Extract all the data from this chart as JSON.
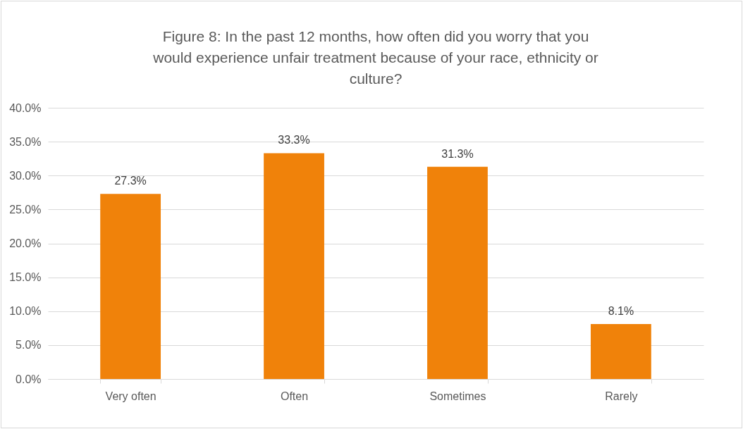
{
  "chart_data": {
    "type": "bar",
    "title": "Figure 8: In the past 12 months, how often did you worry that you would experience unfair treatment because of your race, ethnicity or culture?",
    "categories": [
      "Very often",
      "Often",
      "Sometimes",
      "Rarely"
    ],
    "values": [
      27.3,
      33.3,
      31.3,
      8.1
    ],
    "value_labels": [
      "27.3%",
      "33.3%",
      "31.3%",
      "8.1%"
    ],
    "color": "#f0820a",
    "ylim": [
      0,
      40
    ],
    "yticks": [
      {
        "value": 0,
        "label": "0.0%"
      },
      {
        "value": 5,
        "label": "5.0%"
      },
      {
        "value": 10,
        "label": "10.0%"
      },
      {
        "value": 15,
        "label": "15.0%"
      },
      {
        "value": 20,
        "label": "20.0%"
      },
      {
        "value": 25,
        "label": "25.0%"
      },
      {
        "value": 30,
        "label": "30.0%"
      },
      {
        "value": 35,
        "label": "35.0%"
      },
      {
        "value": 40,
        "label": "40.0%"
      }
    ],
    "grid": "y"
  }
}
